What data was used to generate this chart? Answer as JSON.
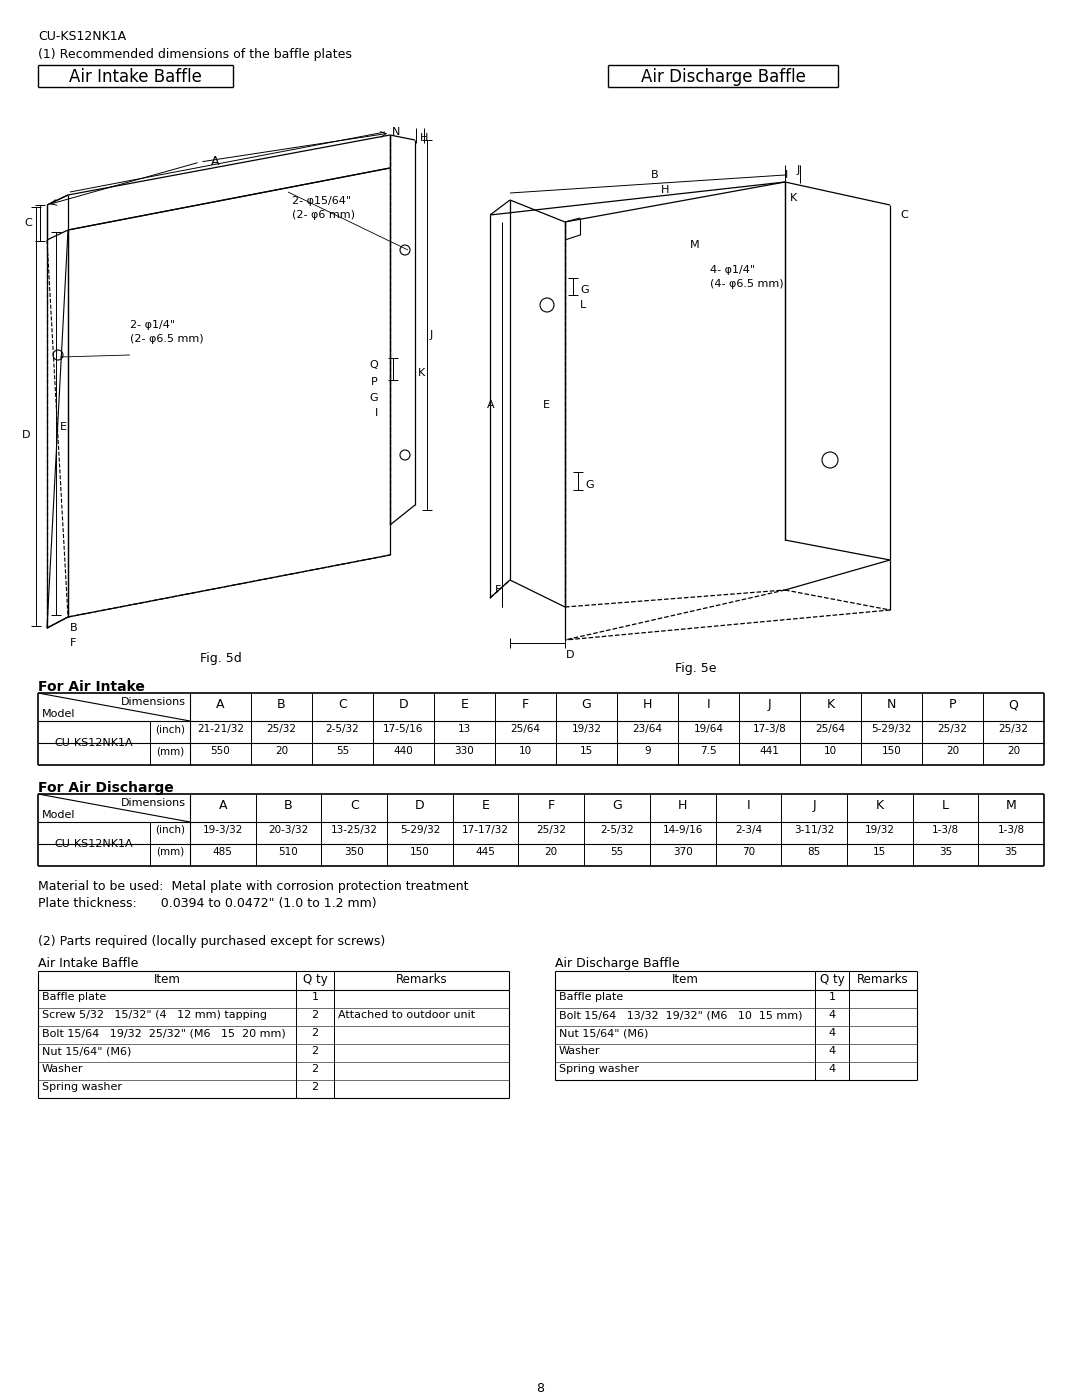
{
  "title_model": "CU-KS12NK1A",
  "subtitle": "(1) Recommended dimensions of the baffle plates",
  "air_intake_label": "Air Intake Baffle",
  "air_discharge_label": "Air Discharge Baffle",
  "fig5d_label": "Fig. 5d",
  "fig5e_label": "Fig. 5e",
  "for_air_intake": "For Air Intake",
  "for_air_discharge": "For Air Discharge",
  "intake_table_cols": [
    "A",
    "B",
    "C",
    "D",
    "E",
    "F",
    "G",
    "H",
    "I",
    "J",
    "K",
    "N",
    "P",
    "Q"
  ],
  "intake_inch_row": [
    "21-21/32",
    "25/32",
    "2-5/32",
    "17-5/16",
    "13",
    "25/64",
    "19/32",
    "23/64",
    "19/64",
    "17-3/8",
    "25/64",
    "5-29/32",
    "25/32",
    "25/32"
  ],
  "intake_mm_row": [
    "550",
    "20",
    "55",
    "440",
    "330",
    "10",
    "15",
    "9",
    "7.5",
    "441",
    "10",
    "150",
    "20",
    "20"
  ],
  "discharge_table_cols": [
    "A",
    "B",
    "C",
    "D",
    "E",
    "F",
    "G",
    "H",
    "I",
    "J",
    "K",
    "L",
    "M"
  ],
  "discharge_inch_row": [
    "19-3/32",
    "20-3/32",
    "13-25/32",
    "5-29/32",
    "17-17/32",
    "25/32",
    "2-5/32",
    "14-9/16",
    "2-3/4",
    "3-11/32",
    "19/32",
    "1-3/8",
    "1-3/8"
  ],
  "discharge_mm_row": [
    "485",
    "510",
    "350",
    "150",
    "445",
    "20",
    "55",
    "370",
    "70",
    "85",
    "15",
    "35",
    "35"
  ],
  "material_note": "Material to be used:  Metal plate with corrosion protection treatment",
  "plate_note": "Plate thickness:      0.0394 to 0.0472\" (1.0 to 1.2 mm)",
  "parts_heading": "(2) Parts required (locally purchased except for screws)",
  "intake_baffle_label": "Air Intake Baffle",
  "discharge_baffle_label": "Air Discharge Baffle",
  "intake_items": [
    [
      "Baffle plate",
      "1",
      ""
    ],
    [
      "Screw 5/32   15/32\" (4   12 mm) tapping",
      "2",
      "Attached to outdoor unit"
    ],
    [
      "Bolt 15/64   19/32  25/32\" (M6   15  20 mm)",
      "2",
      ""
    ],
    [
      "Nut 15/64\" (M6)",
      "2",
      ""
    ],
    [
      "Washer",
      "2",
      ""
    ],
    [
      "Spring washer",
      "2",
      ""
    ]
  ],
  "discharge_items": [
    [
      "Baffle plate",
      "1",
      ""
    ],
    [
      "Bolt 15/64   13/32  19/32\" (M6   10  15 mm)",
      "4",
      ""
    ],
    [
      "Nut 15/64\" (M6)",
      "4",
      ""
    ],
    [
      "Washer",
      "4",
      ""
    ],
    [
      "Spring washer",
      "4",
      ""
    ]
  ],
  "page_number": "8",
  "bg_color": "#ffffff"
}
